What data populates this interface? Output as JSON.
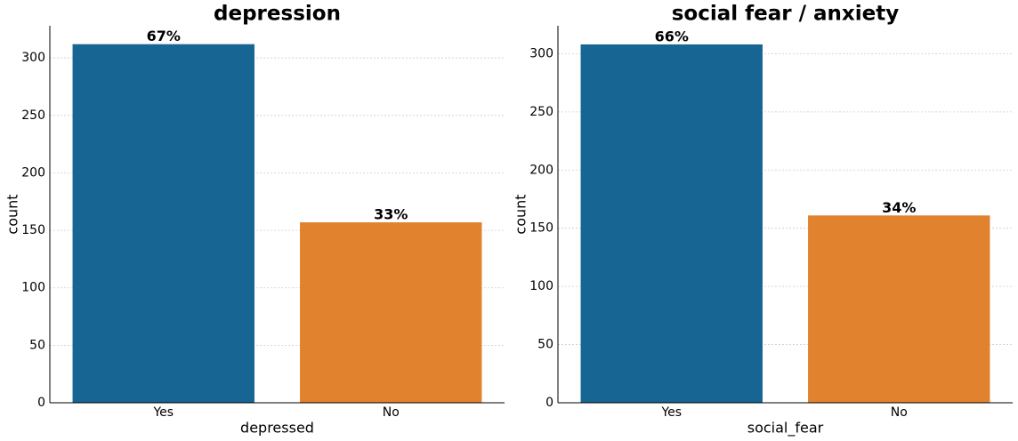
{
  "chart_data": [
    {
      "type": "bar",
      "title": "depression",
      "x_label": "depressed",
      "y_label": "count",
      "categories": [
        "Yes",
        "No"
      ],
      "values": [
        312,
        157
      ],
      "value_labels": [
        "67%",
        "33%"
      ],
      "colors": [
        "#166593",
        "#e1822f"
      ],
      "ylim": [
        0,
        328
      ],
      "yticks": [
        0,
        50,
        100,
        150,
        200,
        250,
        300
      ],
      "grid": true
    },
    {
      "type": "bar",
      "title": "social fear / anxiety",
      "x_label": "social_fear",
      "y_label": "count",
      "categories": [
        "Yes",
        "No"
      ],
      "values": [
        308,
        161
      ],
      "value_labels": [
        "66%",
        "34%"
      ],
      "colors": [
        "#166593",
        "#e1822f"
      ],
      "ylim": [
        0,
        324
      ],
      "yticks": [
        0,
        50,
        100,
        150,
        200,
        250,
        300
      ],
      "grid": true
    }
  ]
}
